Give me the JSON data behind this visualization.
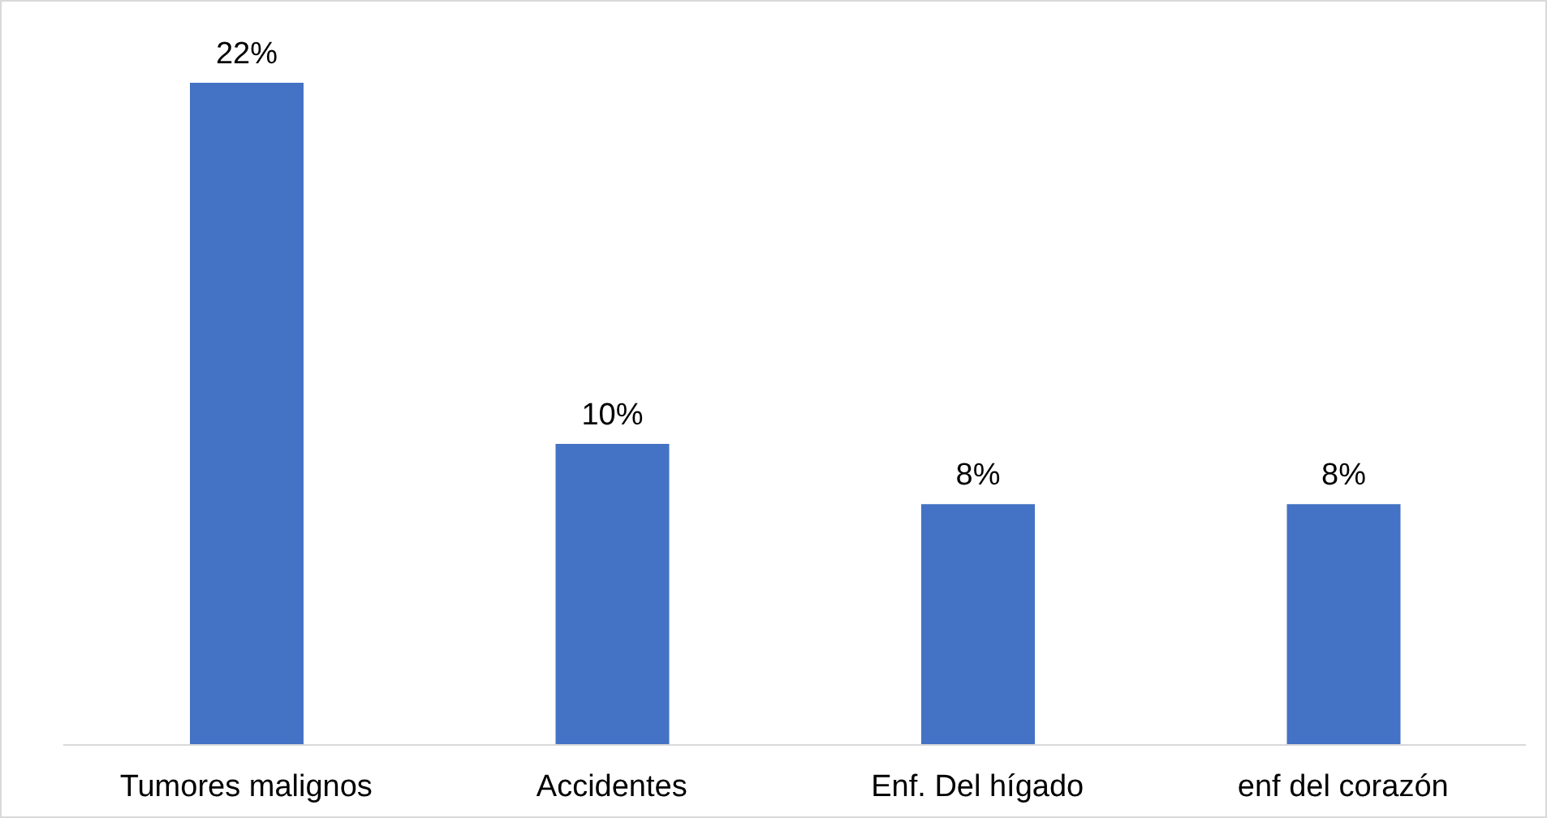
{
  "chart_data": {
    "type": "bar",
    "categories": [
      "Tumores malignos",
      "Accidentes",
      "Enf. Del hígado",
      "enf del corazón"
    ],
    "values": [
      22,
      10,
      8,
      8
    ],
    "value_labels": [
      "22%",
      "10%",
      "8%",
      "8%"
    ],
    "color": "#4472c4",
    "grid": false,
    "legend": false
  }
}
